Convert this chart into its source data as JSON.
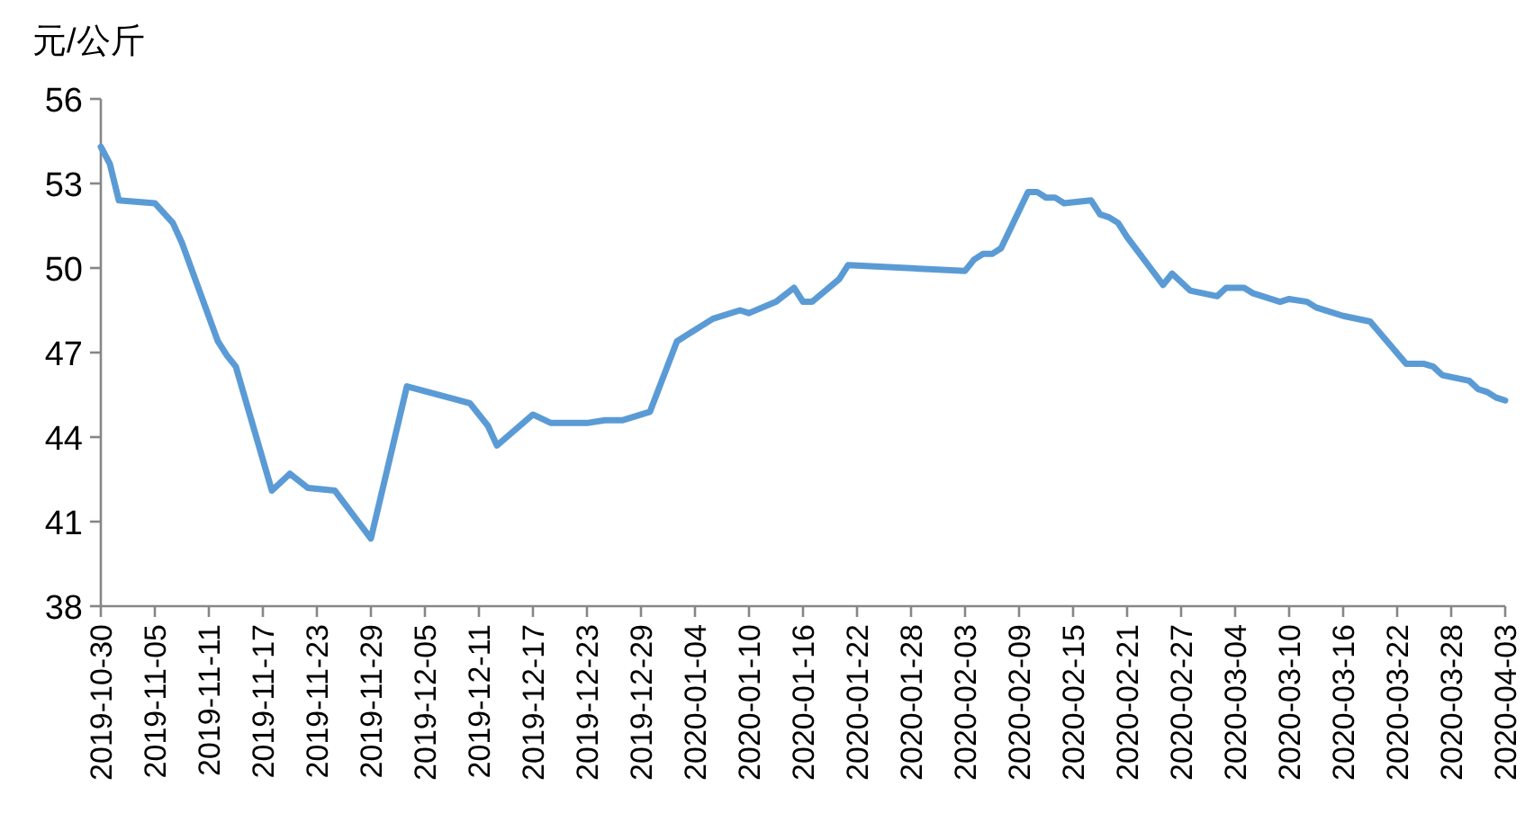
{
  "chart_data": {
    "type": "line",
    "ylabel": "元/公斤",
    "x": [
      "2019-10-30",
      "2019-10-31",
      "2019-11-01",
      "2019-11-05",
      "2019-11-07",
      "2019-11-08",
      "2019-11-12",
      "2019-11-13",
      "2019-11-14",
      "2019-11-18",
      "2019-11-20",
      "2019-11-22",
      "2019-11-25",
      "2019-11-29",
      "2019-12-03",
      "2019-12-10",
      "2019-12-12",
      "2019-12-13",
      "2019-12-17",
      "2019-12-19",
      "2019-12-23",
      "2019-12-25",
      "2019-12-27",
      "2019-12-30",
      "2020-01-02",
      "2020-01-06",
      "2020-01-09",
      "2020-01-10",
      "2020-01-13",
      "2020-01-15",
      "2020-01-16",
      "2020-01-17",
      "2020-01-20",
      "2020-01-21",
      "2020-02-03",
      "2020-02-04",
      "2020-02-05",
      "2020-02-06",
      "2020-02-07",
      "2020-02-10",
      "2020-02-11",
      "2020-02-12",
      "2020-02-13",
      "2020-02-14",
      "2020-02-17",
      "2020-02-18",
      "2020-02-19",
      "2020-02-20",
      "2020-02-21",
      "2020-02-25",
      "2020-02-26",
      "2020-02-28",
      "2020-03-02",
      "2020-03-03",
      "2020-03-05",
      "2020-03-06",
      "2020-03-09",
      "2020-03-10",
      "2020-03-12",
      "2020-03-13",
      "2020-03-16",
      "2020-03-19",
      "2020-03-23",
      "2020-03-25",
      "2020-03-26",
      "2020-03-27",
      "2020-03-30",
      "2020-03-31",
      "2020-04-01",
      "2020-04-02",
      "2020-04-03"
    ],
    "series": [
      {
        "color": "#5b9bd5",
        "values": [
          54.3,
          53.7,
          52.4,
          52.3,
          51.6,
          50.9,
          47.4,
          46.9,
          46.5,
          42.1,
          42.7,
          42.2,
          42.1,
          40.4,
          45.8,
          45.2,
          44.4,
          43.7,
          44.8,
          44.5,
          44.5,
          44.6,
          44.6,
          44.9,
          47.4,
          48.2,
          48.5,
          48.4,
          48.8,
          49.3,
          48.8,
          48.8,
          49.6,
          50.1,
          49.9,
          50.3,
          50.5,
          50.5,
          50.7,
          52.7,
          52.7,
          52.5,
          52.5,
          52.3,
          52.4,
          51.9,
          51.8,
          51.6,
          51.1,
          49.4,
          49.8,
          49.2,
          49.0,
          49.3,
          49.3,
          49.1,
          48.8,
          48.9,
          48.8,
          48.6,
          48.3,
          48.1,
          46.6,
          46.6,
          46.5,
          46.2,
          46.0,
          45.7,
          45.6,
          45.4,
          45.3
        ]
      }
    ],
    "xlim": [
      "2019-10-30",
      "2020-04-03"
    ],
    "xticks": [
      "2019-10-30",
      "2019-11-05",
      "2019-11-11",
      "2019-11-17",
      "2019-11-23",
      "2019-11-29",
      "2019-12-05",
      "2019-12-11",
      "2019-12-17",
      "2019-12-23",
      "2019-12-29",
      "2020-01-04",
      "2020-01-10",
      "2020-01-16",
      "2020-01-22",
      "2020-01-28",
      "2020-02-03",
      "2020-02-09",
      "2020-02-15",
      "2020-02-21",
      "2020-02-27",
      "2020-03-04",
      "2020-03-10",
      "2020-03-16",
      "2020-03-22",
      "2020-03-28",
      "2020-04-03"
    ],
    "ylim": [
      38,
      56
    ],
    "yticks": [
      38,
      41,
      44,
      47,
      50,
      53,
      56
    ],
    "marker": "none",
    "line_style": "solid"
  }
}
